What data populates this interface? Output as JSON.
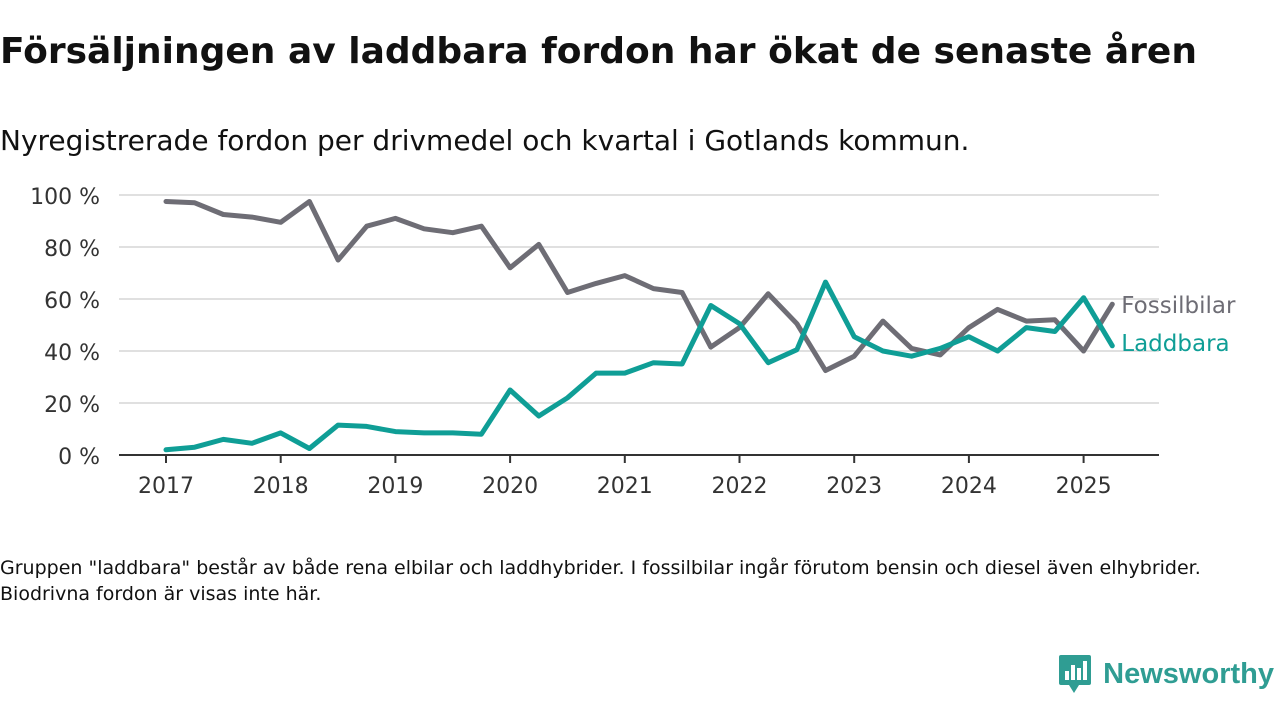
{
  "title": "Försäljningen av laddbara fordon har ökat de senaste åren",
  "subtitle": "Nyregistrerade fordon per drivmedel och kvartal i Gotlands kommun.",
  "footnote": "Gruppen \"laddbara\" består av både rena elbilar och laddhybrider. I fossilbilar ingår förutom bensin och diesel även elhybrider. Biodrivna fordon är visas inte här.",
  "brand": {
    "name": "Newsworthy",
    "logo_icon": "newsworthy-chart-bubble-icon"
  },
  "chart_data": {
    "type": "line",
    "x_unit": "quarter",
    "x": [
      "2017 Q1",
      "2017 Q2",
      "2017 Q3",
      "2017 Q4",
      "2018 Q1",
      "2018 Q2",
      "2018 Q3",
      "2018 Q4",
      "2019 Q1",
      "2019 Q2",
      "2019 Q3",
      "2019 Q4",
      "2020 Q1",
      "2020 Q2",
      "2020 Q3",
      "2020 Q4",
      "2021 Q1",
      "2021 Q2",
      "2021 Q3",
      "2021 Q4",
      "2022 Q1",
      "2022 Q2",
      "2022 Q3",
      "2022 Q4",
      "2023 Q1",
      "2023 Q2",
      "2023 Q3",
      "2023 Q4",
      "2024 Q1",
      "2024 Q2",
      "2024 Q3",
      "2024 Q4",
      "2025 Q1",
      "2025 Q2"
    ],
    "x_tick_labels": [
      "2017",
      "2018",
      "2019",
      "2020",
      "2021",
      "2022",
      "2023",
      "2024",
      "2025"
    ],
    "y_tick_labels": [
      "0 %",
      "20 %",
      "40 %",
      "60 %",
      "80 %",
      "100 %"
    ],
    "y_ticks": [
      0,
      20,
      40,
      60,
      80,
      100
    ],
    "ylim": [
      0,
      100
    ],
    "grid": true,
    "legend": "direct labels at line ends",
    "series": [
      {
        "name": "Fossilbilar",
        "color": "#6e6d75",
        "values": [
          97.5,
          97,
          92.5,
          91.5,
          89.5,
          97.5,
          75,
          88,
          91,
          87,
          85.5,
          88,
          72,
          81,
          62.5,
          66,
          69,
          64,
          62.5,
          41.5,
          49,
          62,
          50.5,
          32.5,
          38,
          51.5,
          41,
          38.5,
          49,
          56,
          51.5,
          52,
          40,
          58
        ]
      },
      {
        "name": "Laddbara",
        "color": "#0f9e96",
        "values": [
          2,
          3,
          6,
          4.5,
          8.5,
          2.5,
          11.5,
          11,
          9,
          8.5,
          8.5,
          8,
          25,
          15,
          22,
          31.5,
          31.5,
          35.5,
          35,
          57.5,
          50.5,
          35.5,
          40.5,
          66.5,
          45.5,
          40,
          38,
          41,
          45.5,
          40,
          49,
          47.5,
          60.5,
          42
        ]
      }
    ]
  }
}
